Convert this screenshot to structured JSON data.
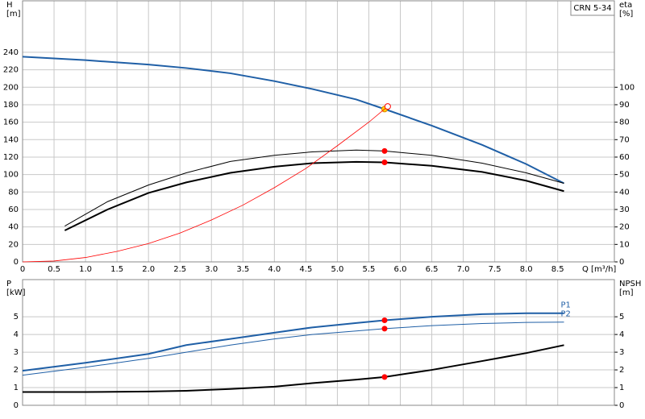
{
  "chart_data": [
    {
      "type": "line",
      "title": "CRN 5-34",
      "ylabel": [
        "H",
        "[m]"
      ],
      "y2label": [
        "eta",
        "[%]"
      ],
      "xlabel": "Q [m³/h]",
      "xlim": [
        0,
        9.4
      ],
      "ylim": [
        0,
        299
      ],
      "y2lim": [
        0,
        149.5
      ],
      "grid": true,
      "operating_point_x": 5.75,
      "xticks": [
        0,
        0.5,
        {
          "value": 1,
          "label": "1.0"
        },
        1.5,
        {
          "value": 2,
          "label": "2.0"
        },
        2.5,
        {
          "value": 3,
          "label": "3.0"
        },
        3.5,
        {
          "value": 4,
          "label": "4.0"
        },
        4.5,
        {
          "value": 5,
          "label": "5.0"
        },
        5.5,
        {
          "value": 6,
          "label": "6.0"
        },
        6.5,
        {
          "value": 7,
          "label": "7.0"
        },
        7.5,
        {
          "value": 8,
          "label": "8.0"
        },
        8.5
      ],
      "yticks": [
        0,
        20,
        40,
        60,
        80,
        100,
        120,
        140,
        160,
        180,
        200,
        220,
        240
      ],
      "y2ticks": [
        0,
        10,
        20,
        30,
        40,
        50,
        60,
        70,
        80,
        90,
        100
      ],
      "series": [
        {
          "color": "#1f5fa6",
          "width": 2,
          "marker_color": "#ffd700",
          "x": [
            0,
            1,
            2,
            2.6,
            3.3,
            4,
            4.6,
            5.3,
            5.75,
            6.5,
            7.3,
            8,
            8.6
          ],
          "values": [
            235,
            231,
            226,
            222,
            216,
            207,
            198,
            186,
            175,
            156,
            134,
            112,
            90
          ]
        },
        {
          "color": "#000000",
          "width": 1,
          "axis": "y2",
          "marker_color": "#ff0000",
          "x": [
            0.67,
            1.35,
            2,
            2.6,
            3.3,
            4,
            4.6,
            5.3,
            5.75,
            6.5,
            7.3,
            8,
            8.6
          ],
          "values": [
            20.5,
            34.5,
            44,
            51,
            57.5,
            61,
            63,
            64,
            63.5,
            61,
            56.5,
            51,
            45
          ]
        },
        {
          "color": "#000000",
          "width": 2,
          "axis": "y2",
          "marker_color": "#ff0000",
          "x": [
            0.67,
            1.35,
            2,
            2.6,
            3.3,
            4,
            4.6,
            5.3,
            5.75,
            6.5,
            7.3,
            8,
            8.6
          ],
          "values": [
            18,
            30,
            39.5,
            45.5,
            51,
            54.5,
            56.5,
            57.3,
            57,
            55,
            51.5,
            46.5,
            40.5
          ]
        },
        {
          "color": "#ff0000",
          "width": 0.8,
          "end_marker": "open",
          "x": [
            0,
            0.5,
            1,
            1.5,
            2,
            2.5,
            3,
            3.5,
            4,
            4.5,
            5,
            5.5,
            5.8
          ],
          "values": [
            0,
            1,
            5,
            12,
            21,
            33,
            48,
            65,
            85,
            107,
            133,
            160,
            178
          ]
        }
      ]
    },
    {
      "type": "line",
      "ylabel": [
        "P",
        "[kW]"
      ],
      "y2label": [
        "NPSH",
        "[m]"
      ],
      "xlim": [
        0,
        9.4
      ],
      "ylim": [
        0,
        7.1
      ],
      "y2lim": [
        0,
        7.1
      ],
      "grid": true,
      "operating_point_x": 5.75,
      "yticks": [
        0,
        1,
        2,
        3,
        4,
        5
      ],
      "y2ticks": [
        0,
        1,
        2,
        3,
        4,
        5
      ],
      "series": [
        {
          "name": "P1",
          "color": "#1f5fa6",
          "width": 2,
          "marker_color": "#ff0000",
          "x": [
            0,
            1,
            2,
            2.6,
            3.3,
            4,
            4.6,
            5.3,
            5.75,
            6.5,
            7.3,
            8,
            8.6
          ],
          "values": [
            1.95,
            2.4,
            2.9,
            3.4,
            3.75,
            4.1,
            4.4,
            4.65,
            4.8,
            5.0,
            5.15,
            5.2,
            5.2
          ]
        },
        {
          "name": "P2",
          "color": "#1f5fa6",
          "width": 1,
          "marker_color": "#ff0000",
          "x": [
            0,
            1,
            2,
            2.6,
            3.3,
            4,
            4.6,
            5.3,
            5.75,
            6.5,
            7.3,
            8,
            8.6
          ],
          "values": [
            1.7,
            2.15,
            2.65,
            3.0,
            3.4,
            3.75,
            4.0,
            4.2,
            4.33,
            4.5,
            4.62,
            4.68,
            4.7
          ]
        },
        {
          "color": "#000000",
          "width": 2,
          "axis": "y2",
          "marker_color": "#ff0000",
          "x": [
            0,
            1,
            2,
            2.6,
            3.3,
            4,
            4.6,
            5.3,
            5.75,
            6.5,
            7.3,
            8,
            8.6
          ],
          "values": [
            0.75,
            0.75,
            0.78,
            0.82,
            0.92,
            1.05,
            1.25,
            1.45,
            1.6,
            2.0,
            2.5,
            2.95,
            3.4
          ]
        }
      ]
    }
  ]
}
